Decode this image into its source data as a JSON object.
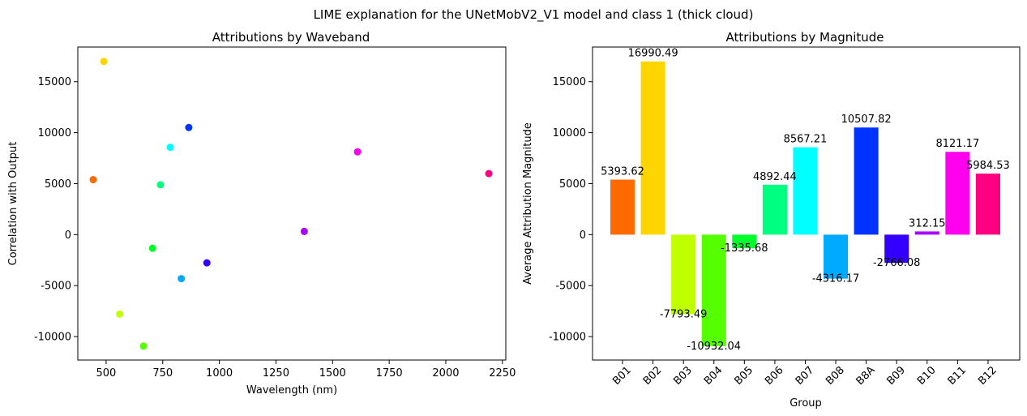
{
  "figure_title": "LIME explanation for the UNetMobV2_V1 model and class 1 (thick cloud)",
  "chart_data": [
    {
      "type": "scatter",
      "title": "Attributions by Waveband",
      "xlabel": "Wavelength (nm)",
      "ylabel": "Correlation with Output",
      "xlim": [
        375,
        2265
      ],
      "ylim": [
        -12300,
        18400
      ],
      "xticks": [
        500,
        750,
        1000,
        1250,
        1500,
        1750,
        2000,
        2250
      ],
      "yticks": [
        -10000,
        -5000,
        0,
        5000,
        10000,
        15000
      ],
      "grid": false,
      "points": [
        {
          "band": "B01",
          "x": 443,
          "y": 5393.62,
          "color": "#ff6a00"
        },
        {
          "band": "B02",
          "x": 490,
          "y": 16990.49,
          "color": "#ffd500"
        },
        {
          "band": "B03",
          "x": 560,
          "y": -7793.49,
          "color": "#bfff00"
        },
        {
          "band": "B04",
          "x": 665,
          "y": -10932.04,
          "color": "#55ff00"
        },
        {
          "band": "B05",
          "x": 705,
          "y": -1335.68,
          "color": "#00ff2a"
        },
        {
          "band": "B06",
          "x": 740,
          "y": 4892.44,
          "color": "#00ff80"
        },
        {
          "band": "B07",
          "x": 783,
          "y": 8567.21,
          "color": "#00ffff"
        },
        {
          "band": "B08",
          "x": 832,
          "y": -4316.17,
          "color": "#00aaff"
        },
        {
          "band": "B8A",
          "x": 865,
          "y": 10507.82,
          "color": "#0033ff"
        },
        {
          "band": "B09",
          "x": 945,
          "y": -2766.08,
          "color": "#3300ff"
        },
        {
          "band": "B10",
          "x": 1375,
          "y": 312.15,
          "color": "#aa00ff"
        },
        {
          "band": "B11",
          "x": 1610,
          "y": 8121.17,
          "color": "#ff00ee"
        },
        {
          "band": "B12",
          "x": 2190,
          "y": 5984.53,
          "color": "#ff0080"
        }
      ]
    },
    {
      "type": "bar",
      "title": "Attributions by Magnitude",
      "xlabel": "Group",
      "ylabel": "Average Attribution Magnitude",
      "ylim": [
        -12300,
        18400
      ],
      "yticks": [
        -10000,
        -5000,
        0,
        5000,
        10000,
        15000
      ],
      "grid": false,
      "categories": [
        "B01",
        "B02",
        "B03",
        "B04",
        "B05",
        "B06",
        "B07",
        "B08",
        "B8A",
        "B09",
        "B10",
        "B11",
        "B12"
      ],
      "values": [
        5393.62,
        16990.49,
        -7793.49,
        -10932.04,
        -1335.68,
        4892.44,
        8567.21,
        -4316.17,
        10507.82,
        -2766.08,
        312.15,
        8121.17,
        5984.53
      ],
      "value_labels": [
        "5393.62",
        "16990.49",
        "-7793.49",
        "-10932.04",
        "-1335.68",
        "4892.44",
        "8567.21",
        "-4316.17",
        "10507.82",
        "-2766.08",
        "312.15",
        "8121.17",
        "5984.53"
      ],
      "colors": [
        "#ff6a00",
        "#ffd500",
        "#bfff00",
        "#55ff00",
        "#00ff2a",
        "#00ff80",
        "#00ffff",
        "#00aaff",
        "#0033ff",
        "#3300ff",
        "#aa00ff",
        "#ff00ee",
        "#ff0080"
      ]
    }
  ]
}
